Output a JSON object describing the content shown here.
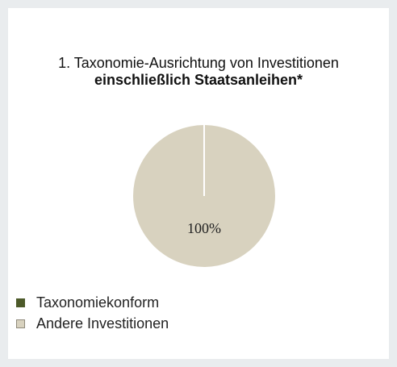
{
  "chart_data": {
    "type": "pie",
    "title": "1. Taxonomie-Ausrichtung von Investitionen",
    "subtitle": "einschließlich Staatsanleihen*",
    "slices": [
      {
        "label": "Taxonomiekonform",
        "value": 0,
        "color": "#4d5a2a"
      },
      {
        "label": "Andere Investitionen",
        "value": 100,
        "color": "#d8d2bf"
      }
    ],
    "data_labels": [
      "100%"
    ],
    "legend_position": "bottom-left"
  }
}
